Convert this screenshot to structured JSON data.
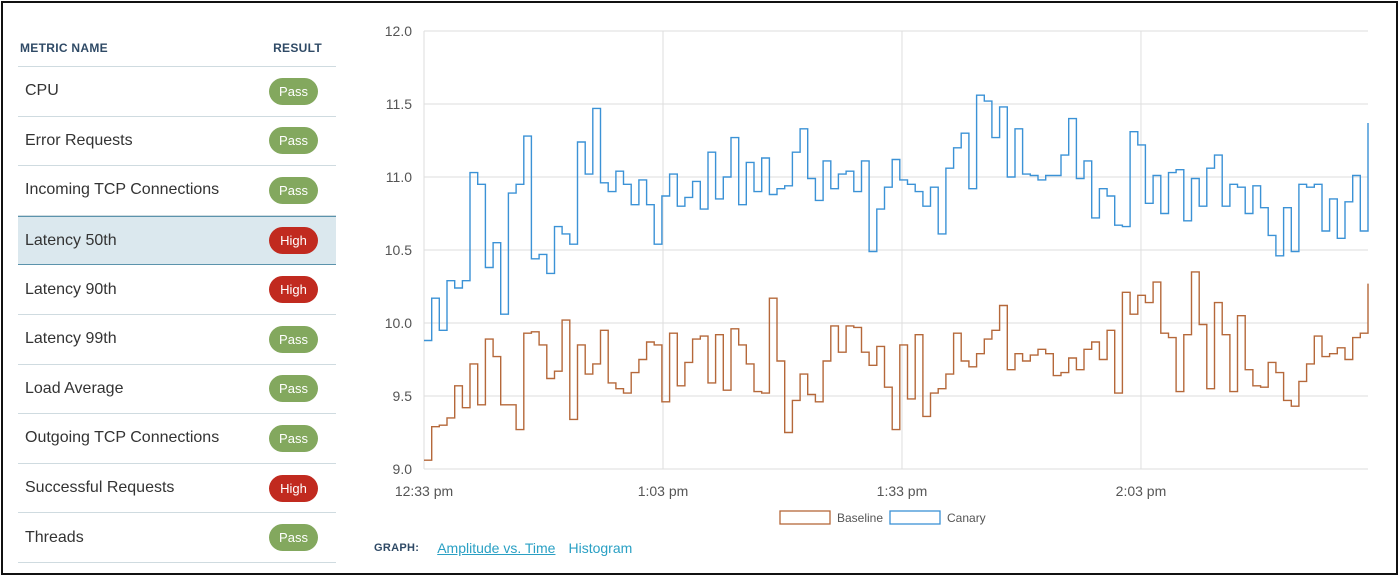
{
  "table": {
    "col_metric": "METRIC NAME",
    "col_result": "RESULT",
    "rows": [
      {
        "name": "CPU",
        "result": "Pass",
        "status": "pass"
      },
      {
        "name": "Error Requests",
        "result": "Pass",
        "status": "pass"
      },
      {
        "name": "Incoming TCP Connections",
        "result": "Pass",
        "status": "pass"
      },
      {
        "name": "Latency 50th",
        "result": "High",
        "status": "high",
        "selected": true
      },
      {
        "name": "Latency 90th",
        "result": "High",
        "status": "high"
      },
      {
        "name": "Latency 99th",
        "result": "Pass",
        "status": "pass"
      },
      {
        "name": "Load Average",
        "result": "Pass",
        "status": "pass"
      },
      {
        "name": "Outgoing TCP Connections",
        "result": "Pass",
        "status": "pass"
      },
      {
        "name": "Successful Requests",
        "result": "High",
        "status": "high"
      },
      {
        "name": "Threads",
        "result": "Pass",
        "status": "pass"
      }
    ]
  },
  "graph_bar": {
    "label": "GRAPH:",
    "options": [
      {
        "label": "Amplitude vs. Time",
        "active": true
      },
      {
        "label": "Histogram",
        "active": false
      }
    ]
  },
  "colors": {
    "pass": "#83a85e",
    "high": "#c12a1f",
    "baseline": "#b5683a",
    "canary": "#3b92d6",
    "grid": "#dedede"
  },
  "chart_data": {
    "type": "line",
    "step": true,
    "x_ticks": [
      "12:33 pm",
      "1:03 pm",
      "1:33 pm",
      "2:03 pm"
    ],
    "x_tick_minutes": [
      0,
      30,
      60,
      90
    ],
    "x_range_minutes": [
      0,
      118.5
    ],
    "ylim": [
      9.0,
      12.0
    ],
    "y_ticks": [
      9.0,
      9.5,
      10.0,
      10.5,
      11.0,
      11.5,
      12.0
    ],
    "grid": true,
    "legend_position": "bottom-center",
    "series": [
      {
        "name": "Baseline",
        "color": "#b5683a",
        "values": [
          9.06,
          9.29,
          9.3,
          9.35,
          9.57,
          9.42,
          9.72,
          9.44,
          9.89,
          9.77,
          9.44,
          9.44,
          9.27,
          9.93,
          9.94,
          9.85,
          9.62,
          9.67,
          10.02,
          9.34,
          9.85,
          9.65,
          9.72,
          9.95,
          9.59,
          9.55,
          9.52,
          9.66,
          9.75,
          9.87,
          9.85,
          9.46,
          9.93,
          9.57,
          9.73,
          9.89,
          9.91,
          9.59,
          9.92,
          9.54,
          9.96,
          9.85,
          9.72,
          9.53,
          9.52,
          10.17,
          9.74,
          9.25,
          9.47,
          9.65,
          9.51,
          9.46,
          9.74,
          9.98,
          9.8,
          9.98,
          9.97,
          9.8,
          9.71,
          9.84,
          9.56,
          9.27,
          9.85,
          9.48,
          9.92,
          9.36,
          9.52,
          9.55,
          9.65,
          9.93,
          9.74,
          9.7,
          9.79,
          9.89,
          9.95,
          10.12,
          9.68,
          9.79,
          9.74,
          9.78,
          9.82,
          9.79,
          9.64,
          9.66,
          9.76,
          9.68,
          9.82,
          9.87,
          9.75,
          9.95,
          9.52,
          10.21,
          10.06,
          10.19,
          10.14,
          10.28,
          9.93,
          9.9,
          9.53,
          9.92,
          10.35,
          9.99,
          9.55,
          10.14,
          9.92,
          9.53,
          10.05,
          9.68,
          9.57,
          9.56,
          9.73,
          9.66,
          9.47,
          9.43,
          9.6,
          9.72,
          9.91,
          9.77,
          9.79,
          9.83,
          9.75,
          9.9,
          9.93,
          10.27
        ]
      },
      {
        "name": "Canary",
        "color": "#3b92d6",
        "values": [
          9.88,
          10.17,
          9.95,
          10.29,
          10.24,
          10.29,
          11.03,
          10.95,
          10.38,
          10.55,
          10.06,
          10.89,
          10.95,
          11.28,
          10.44,
          10.47,
          10.34,
          10.66,
          10.61,
          10.54,
          11.24,
          11.02,
          11.47,
          10.96,
          10.9,
          11.04,
          10.95,
          10.81,
          10.98,
          10.81,
          10.54,
          10.87,
          11.02,
          10.8,
          10.86,
          10.97,
          10.78,
          11.17,
          10.85,
          11.0,
          11.27,
          10.81,
          11.1,
          10.9,
          11.13,
          10.88,
          10.92,
          10.94,
          11.17,
          11.33,
          10.99,
          10.84,
          11.11,
          10.92,
          11.02,
          11.04,
          10.9,
          11.11,
          10.49,
          10.78,
          10.93,
          11.12,
          10.98,
          10.95,
          10.9,
          10.8,
          10.93,
          10.61,
          11.06,
          11.2,
          11.3,
          10.92,
          11.56,
          11.52,
          11.27,
          11.48,
          11.0,
          11.33,
          11.02,
          11.01,
          10.98,
          11.01,
          11.01,
          11.15,
          11.4,
          10.99,
          11.11,
          10.72,
          10.92,
          10.87,
          10.67,
          10.66,
          11.31,
          11.22,
          10.82,
          11.01,
          10.75,
          11.03,
          11.05,
          10.7,
          10.99,
          10.8,
          11.06,
          11.15,
          10.8,
          10.95,
          10.93,
          10.75,
          10.94,
          10.79,
          10.6,
          10.46,
          10.79,
          10.49,
          10.95,
          10.93,
          10.95,
          10.63,
          10.85,
          10.58,
          10.83,
          11.01,
          10.63,
          11.37
        ]
      }
    ]
  }
}
